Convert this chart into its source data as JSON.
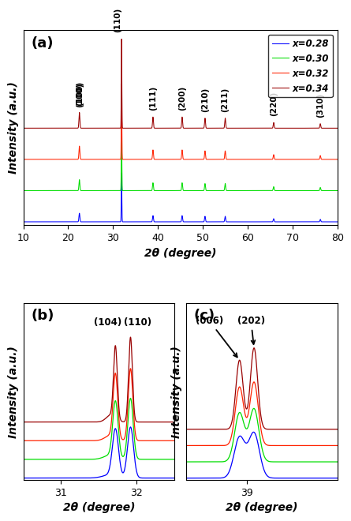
{
  "colors": [
    "#0000ff",
    "#00dd00",
    "#ff2200",
    "#990000"
  ],
  "labels": [
    "x=0.28",
    "x=0.30",
    "x=0.32",
    "x=0.34"
  ],
  "offsets_a": [
    0.0,
    0.28,
    0.56,
    0.84
  ],
  "offsets_b": [
    0.0,
    0.22,
    0.44,
    0.66
  ],
  "offsets_c": [
    0.0,
    0.2,
    0.4,
    0.6
  ],
  "panel_a_label": "(a)",
  "panel_b_label": "(b)",
  "panel_c_label": "(c)",
  "xlabel_a": "2θ (degree)",
  "xlabel_b": "2θ (degree)",
  "xlabel_c": "2θ (degree)",
  "ylabel": "Intensity (a.u.)",
  "xlim_a": [
    10,
    80
  ],
  "xlim_b": [
    30.5,
    32.5
  ],
  "xlim_c": [
    38.0,
    40.5
  ],
  "peaks_a": [
    22.5,
    31.9,
    38.9,
    45.4,
    50.5,
    55.0,
    65.8,
    76.2
  ],
  "peak_labels_a": [
    "(100)",
    "(110)",
    "(111)",
    "(200)",
    "(210)",
    "(211)",
    "(220)",
    "(310)"
  ],
  "widths_a": [
    0.1,
    0.06,
    0.1,
    0.1,
    0.1,
    0.1,
    0.1,
    0.1
  ],
  "heights_a": [
    0.14,
    0.8,
    0.1,
    0.1,
    0.09,
    0.09,
    0.05,
    0.04
  ],
  "peaks_b_104": 31.72,
  "peaks_b_110": 31.92,
  "peaks_c_006": 38.88,
  "peaks_c_202": 39.12,
  "background_color": "#ffffff",
  "label_fontsize": 10,
  "tick_fontsize": 9,
  "peak_label_fontsize": 8
}
